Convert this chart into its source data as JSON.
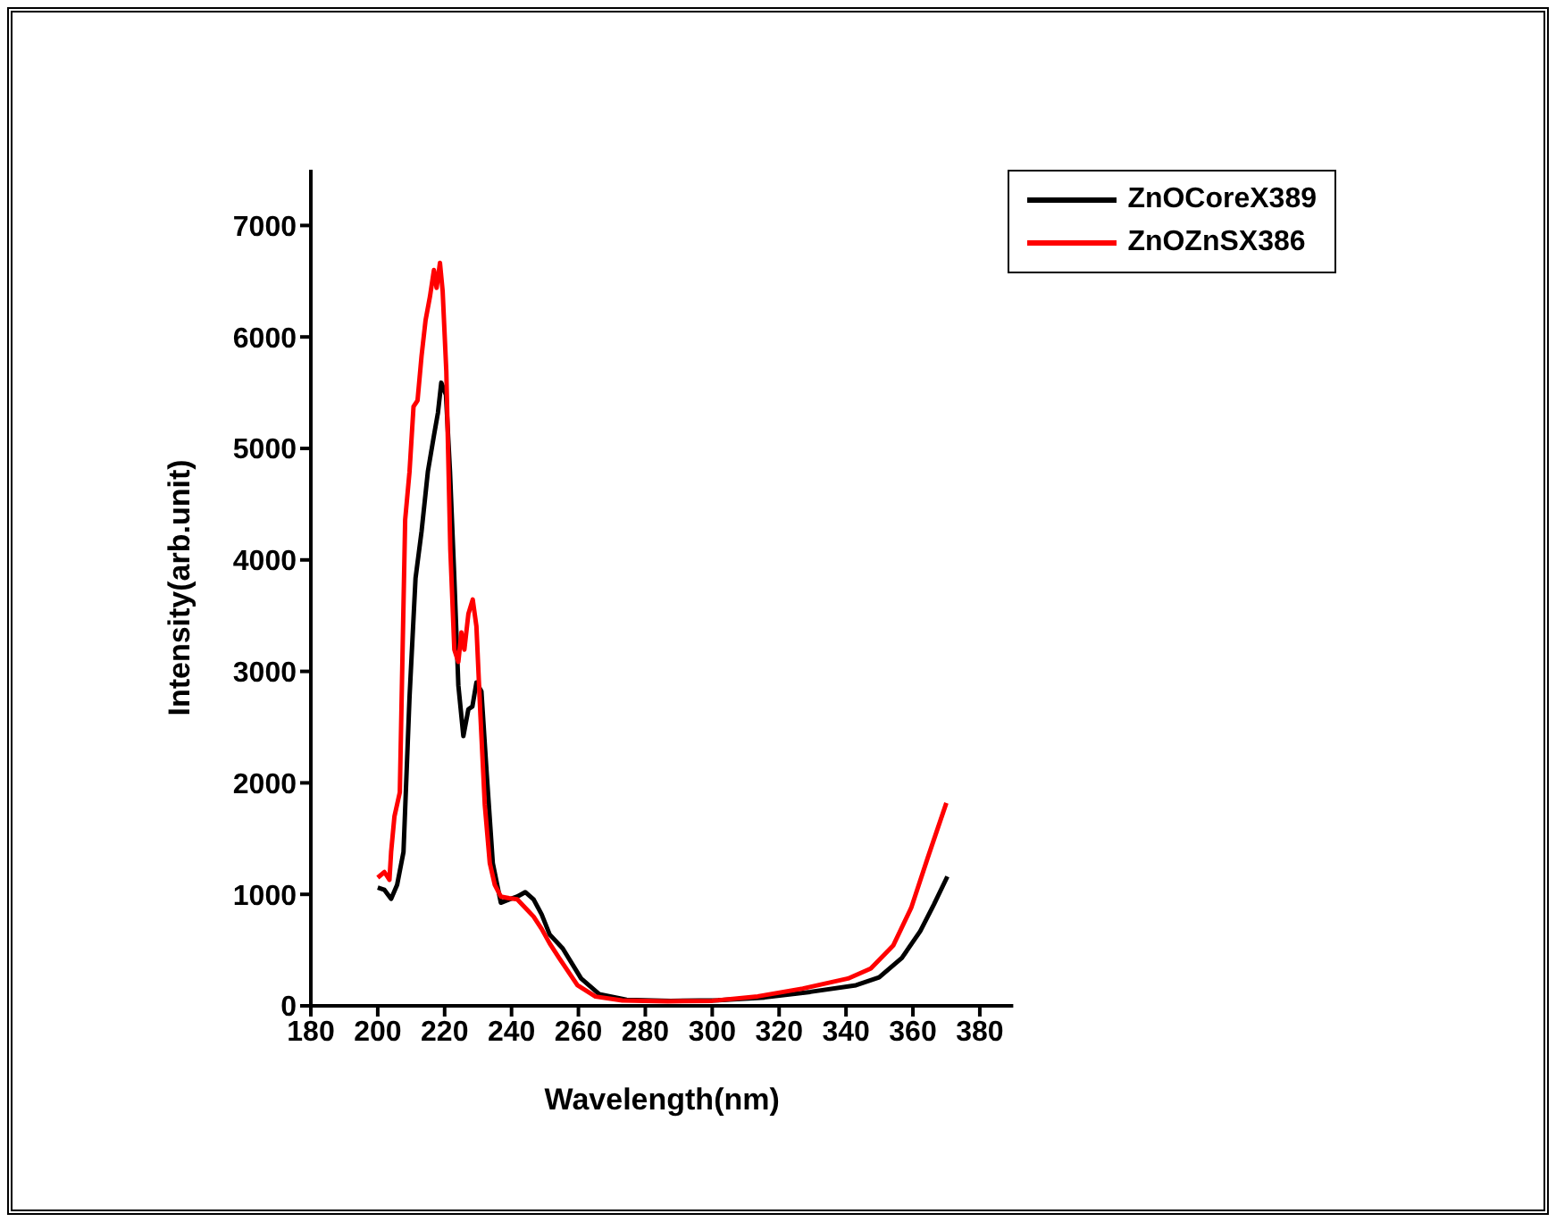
{
  "chart_data": {
    "type": "line",
    "xlabel": "Wavelength(nm)",
    "ylabel": "Intensity(arb.unit)",
    "xlim": [
      180,
      390
    ],
    "xticks": [
      180,
      200,
      220,
      240,
      260,
      280,
      300,
      320,
      340,
      360,
      380
    ],
    "ylim": [
      0,
      7500
    ],
    "yticks": [
      0,
      1000,
      2000,
      3000,
      4000,
      5000,
      6000,
      7000
    ],
    "legend": "top right",
    "grid": false,
    "marker": "none",
    "line_style": "solid",
    "series": [
      {
        "name": "ZnOCoreX389",
        "color": "#000000",
        "x": [
          200,
          202,
          204,
          205.8,
          207.7,
          209.5,
          211.3,
          213.1,
          215,
          216.8,
          218,
          219,
          220.4,
          221.6,
          222.9,
          224.1,
          225.6,
          227.1,
          228.3,
          229.5,
          231,
          232.6,
          234.4,
          236.8,
          239.3,
          241.7,
          244.1,
          246.6,
          249,
          251.4,
          255.3,
          260.8,
          266.2,
          274.4,
          287.5,
          301.8,
          315.6,
          329.3,
          343,
          349.9,
          356.7,
          362.2,
          366.3,
          370.3
        ],
        "values": [
          1060,
          1040,
          960,
          1085,
          1380,
          2765,
          3835,
          4255,
          4795,
          5115,
          5320,
          5590,
          5480,
          4795,
          3835,
          2875,
          2420,
          2660,
          2685,
          2900,
          2820,
          2075,
          1280,
          925,
          955,
          980,
          1020,
          955,
          820,
          640,
          515,
          245,
          105,
          55,
          45,
          50,
          75,
          125,
          185,
          255,
          430,
          670,
          910,
          1160
        ]
      },
      {
        "name": "ZnOZnSX386",
        "color": "#ff0000",
        "x": [
          200,
          202,
          203.5,
          204,
          205,
          206.6,
          207.4,
          208.2,
          209.5,
          210.7,
          211.9,
          213.1,
          214.3,
          215.6,
          216.8,
          217.6,
          218.6,
          219.4,
          220.5,
          221.7,
          222.9,
          224.1,
          225,
          225.9,
          227.1,
          228.4,
          229.5,
          230.7,
          232,
          233.5,
          235,
          236.8,
          239.3,
          241.7,
          244.1,
          246.6,
          249,
          251.4,
          254.3,
          259.7,
          265.1,
          273.1,
          286.7,
          300,
          313.6,
          327.1,
          340.6,
          347.4,
          354.1,
          359.5,
          364.4,
          370
        ],
        "values": [
          1150,
          1200,
          1130,
          1380,
          1700,
          1915,
          3140,
          4360,
          4790,
          5375,
          5430,
          5830,
          6150,
          6360,
          6600,
          6440,
          6665,
          6415,
          5695,
          4095,
          3195,
          3085,
          3350,
          3195,
          3515,
          3645,
          3405,
          2605,
          1805,
          1280,
          1085,
          980,
          965,
          955,
          880,
          800,
          690,
          560,
          425,
          185,
          83,
          48,
          40,
          45,
          85,
          155,
          245,
          335,
          540,
          880,
          1325,
          1820
        ]
      }
    ]
  }
}
